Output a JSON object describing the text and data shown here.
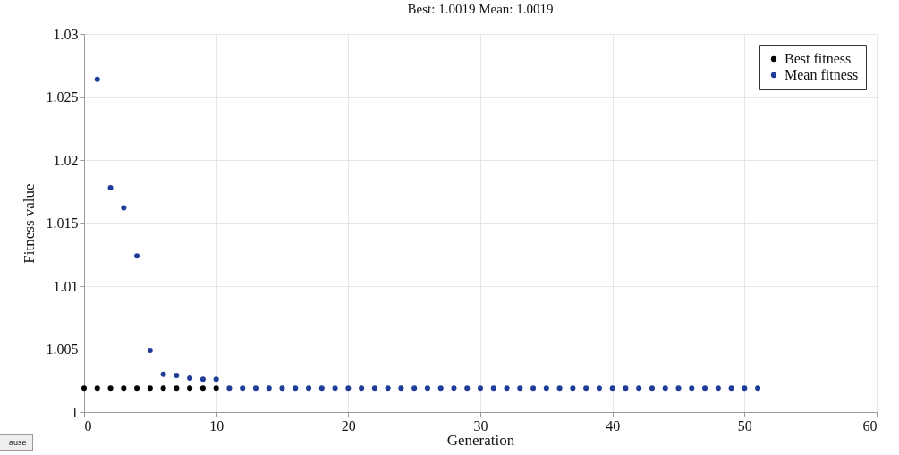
{
  "chart_data": {
    "type": "scatter",
    "title": "Best: 1.0019 Mean: 1.0019",
    "xlabel": "Generation",
    "ylabel": "Fitness value",
    "x": [
      0,
      1,
      2,
      3,
      4,
      5,
      6,
      7,
      8,
      9,
      10,
      11,
      12,
      13,
      14,
      15,
      16,
      17,
      18,
      19,
      20,
      21,
      22,
      23,
      24,
      25,
      26,
      27,
      28,
      29,
      30,
      31,
      32,
      33,
      34,
      35,
      36,
      37,
      38,
      39,
      40,
      41,
      42,
      43,
      44,
      45,
      46,
      47,
      48,
      49,
      50,
      51
    ],
    "series": [
      {
        "name": "Best fitness",
        "color": "#000000",
        "values": [
          1.0019,
          1.0019,
          1.0019,
          1.0019,
          1.0019,
          1.0019,
          1.0019,
          1.0019,
          1.0019,
          1.0019,
          1.0019,
          null,
          null,
          null,
          null,
          null,
          null,
          null,
          null,
          null,
          null,
          null,
          null,
          null,
          null,
          null,
          null,
          null,
          null,
          null,
          null,
          null,
          null,
          null,
          null,
          null,
          null,
          null,
          null,
          null,
          null,
          null,
          null,
          null,
          null,
          null,
          null,
          null,
          null,
          null,
          null,
          null
        ]
      },
      {
        "name": "Mean fitness",
        "color": "#1f3c98",
        "values": [
          null,
          1.0264,
          1.0178,
          1.0162,
          1.0124,
          1.0049,
          1.003,
          1.0029,
          1.0027,
          1.0026,
          1.0026,
          1.0019,
          1.0019,
          1.0019,
          1.0019,
          1.0019,
          1.0019,
          1.0019,
          1.0019,
          1.0019,
          1.0019,
          1.0019,
          1.0019,
          1.0019,
          1.0019,
          1.0019,
          1.0019,
          1.0019,
          1.0019,
          1.0019,
          1.0019,
          1.0019,
          1.0019,
          1.0019,
          1.0019,
          1.0019,
          1.0019,
          1.0019,
          1.0019,
          1.0019,
          1.0019,
          1.0019,
          1.0019,
          1.0019,
          1.0019,
          1.0019,
          1.0019,
          1.0019,
          1.0019,
          1.0019,
          1.0019,
          1.0019
        ]
      }
    ],
    "xlim": [
      0,
      60
    ],
    "xticks": [
      0,
      10,
      20,
      30,
      40,
      50,
      60
    ],
    "ylim": [
      1,
      1.03
    ],
    "yticks": [
      1,
      1.005,
      1.01,
      1.015,
      1.02,
      1.025,
      1.03
    ],
    "grid": true,
    "legend": "top right",
    "marker": "circle",
    "annotations": [
      "ause"
    ]
  }
}
